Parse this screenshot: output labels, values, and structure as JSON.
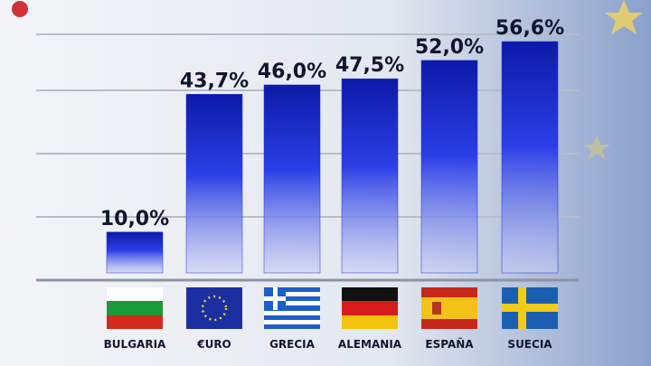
{
  "chart_data": {
    "type": "bar",
    "categories": [
      "BULGARIA",
      "€URO",
      "GRECIA",
      "ALEMANIA",
      "ESPAÑA",
      "SUECIA"
    ],
    "values": [
      10.0,
      43.7,
      46.0,
      47.5,
      52.0,
      56.6
    ],
    "value_labels": [
      "10,0%",
      "43,7%",
      "46,0%",
      "47,5%",
      "52,0%",
      "56,6%"
    ],
    "color": "#1b2fd6"
  }
}
